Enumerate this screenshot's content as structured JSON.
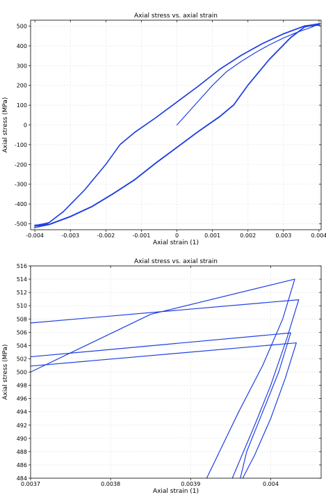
{
  "chart_data": [
    {
      "type": "line",
      "title": "Axial stress vs. axial strain",
      "xlabel": "Axial strain (1)",
      "ylabel": "Axial stress (MPa)",
      "xlim": [
        -0.00412,
        0.00406
      ],
      "ylim": [
        -530,
        530
      ],
      "xticks": [
        -0.004,
        -0.003,
        -0.002,
        -0.001,
        0,
        0.001,
        0.002,
        0.003,
        0.004
      ],
      "xtick_labels": [
        "-0.004",
        "-0.003",
        "-0.002",
        "-0.001",
        "0",
        "0.001",
        "0.002",
        "0.003",
        "0.004"
      ],
      "yticks": [
        -500,
        -400,
        -300,
        -200,
        -100,
        0,
        100,
        200,
        300,
        400,
        500
      ],
      "ytick_labels": [
        "-500",
        "-400",
        "-300",
        "-200",
        "-100",
        "0",
        "100",
        "200",
        "300",
        "400",
        "500"
      ],
      "grid": true,
      "color": "#1f3fe0",
      "series": [
        {
          "x": [
            0,
            0.0005,
            0.001,
            0.0014,
            0.0018,
            0.0022,
            0.0026,
            0.003,
            0.0034,
            0.0038,
            0.00392,
            0.00403
          ],
          "y": [
            0,
            100,
            200,
            270,
            320,
            365,
            405,
            440,
            470,
            495,
            505,
            514
          ]
        },
        {
          "x": [
            0.00403,
            0.0036,
            0.003,
            0.0024,
            0.0018,
            0.0012,
            0.0006,
            0,
            -0.0006,
            -0.0012,
            -0.0016,
            -0.002,
            -0.0026,
            -0.0032,
            -0.0036,
            -0.0039,
            -0.00402
          ],
          "y": [
            514,
            500,
            460,
            410,
            350,
            280,
            195,
            115,
            35,
            -40,
            -100,
            -200,
            -330,
            -440,
            -495,
            -515,
            -520
          ]
        },
        {
          "x": [
            -0.00402,
            -0.0036,
            -0.003,
            -0.0024,
            -0.0018,
            -0.0012,
            -0.0006,
            0,
            0.0006,
            0.0012,
            0.0016,
            0.002,
            0.0026,
            0.0032,
            0.0036,
            0.0039,
            0.00402
          ],
          "y": [
            -520,
            -505,
            -465,
            -415,
            -350,
            -280,
            -195,
            -115,
            -35,
            40,
            100,
            200,
            330,
            440,
            495,
            508,
            511
          ]
        },
        {
          "x": [
            0.00402,
            0.0036,
            0.003,
            0.0024,
            0.0018,
            0.0012,
            0.0006,
            0,
            -0.0006,
            -0.0012,
            -0.0016,
            -0.002,
            -0.0026,
            -0.0032,
            -0.0036,
            -0.0039,
            -0.00401
          ],
          "y": [
            511,
            502,
            462,
            412,
            352,
            282,
            197,
            117,
            37,
            -38,
            -98,
            -198,
            -328,
            -438,
            -493,
            -510,
            -512
          ]
        },
        {
          "x": [
            -0.00401,
            -0.0036,
            -0.003,
            -0.0024,
            -0.0018,
            -0.0012,
            -0.0006,
            0,
            0.0006,
            0.0012,
            0.0016,
            0.002,
            0.0026,
            0.0032,
            0.0036,
            0.0039,
            0.00402
          ],
          "y": [
            -512,
            -503,
            -463,
            -413,
            -348,
            -278,
            -193,
            -113,
            -33,
            42,
            102,
            202,
            332,
            442,
            497,
            505,
            506
          ]
        },
        {
          "x": [
            0.00402,
            0.0036,
            0.003,
            0.0024,
            0.0018,
            0.0012,
            0.0006,
            0,
            -0.0006,
            -0.0012,
            -0.0016,
            -0.002,
            -0.0026,
            -0.0032,
            -0.0036,
            -0.0039,
            -0.004
          ],
          "y": [
            506,
            501,
            461,
            411,
            351,
            281,
            196,
            116,
            36,
            -39,
            -99,
            -199,
            -329,
            -439,
            -494,
            -505,
            -507
          ]
        },
        {
          "x": [
            -0.004,
            -0.0036,
            -0.003,
            -0.0024,
            -0.0018,
            -0.0012,
            -0.0006,
            0,
            0.0006,
            0.0012,
            0.0016,
            0.002,
            0.0026,
            0.0032,
            0.0036,
            0.0039,
            0.00402
          ],
          "y": [
            -507,
            -502,
            -462,
            -412,
            -347,
            -277,
            -192,
            -112,
            -32,
            43,
            103,
            203,
            333,
            443,
            497,
            503,
            504
          ]
        }
      ]
    },
    {
      "type": "line",
      "title": "Axial stress vs. axial strain",
      "xlabel": "Axial strain (1)",
      "ylabel": "Axial stress (MPa)",
      "xlim": [
        0.0037,
        0.004063
      ],
      "ylim": [
        484,
        516
      ],
      "xticks": [
        0.0037,
        0.0038,
        0.0039,
        0.004
      ],
      "xtick_labels": [
        "0.0037",
        "0.0038",
        "0.0039",
        "0.004"
      ],
      "yticks": [
        484,
        486,
        488,
        490,
        492,
        494,
        496,
        498,
        500,
        502,
        504,
        506,
        508,
        510,
        512,
        514,
        516
      ],
      "ytick_labels": [
        "484",
        "486",
        "488",
        "490",
        "492",
        "494",
        "496",
        "498",
        "500",
        "502",
        "504",
        "506",
        "508",
        "510",
        "512",
        "514",
        "516"
      ],
      "grid": true,
      "color": "#1f3fe0",
      "series": [
        {
          "x": [
            0.0037,
            0.00385,
            0.00403
          ],
          "y": [
            500.0,
            508.7,
            514.0
          ]
        },
        {
          "x": [
            0.00403,
            0.004015,
            0.00399,
            0.00396,
            0.00392
          ],
          "y": [
            514.0,
            508.0,
            501.0,
            494.0,
            484.0
          ]
        },
        {
          "x": [
            0.0037,
            0.004035
          ],
          "y": [
            507.4,
            510.9
          ]
        },
        {
          "x": [
            0.004035,
            0.00402,
            0.004,
            0.00398,
            0.003952
          ],
          "y": [
            510.9,
            505.0,
            498.0,
            492.0,
            484.0
          ]
        },
        {
          "x": [
            0.0037,
            0.004025
          ],
          "y": [
            502.3,
            505.9
          ]
        },
        {
          "x": [
            0.004025,
            0.00401,
            0.00399,
            0.00397,
            0.003962
          ],
          "y": [
            505.9,
            500.0,
            494.0,
            488.0,
            484.0
          ]
        },
        {
          "x": [
            0.0037,
            0.004032
          ],
          "y": [
            500.9,
            504.4
          ]
        },
        {
          "x": [
            0.004032,
            0.004018,
            0.004,
            0.00398,
            0.003965
          ],
          "y": [
            504.4,
            499.0,
            493.0,
            487.5,
            484.0
          ]
        }
      ]
    }
  ]
}
